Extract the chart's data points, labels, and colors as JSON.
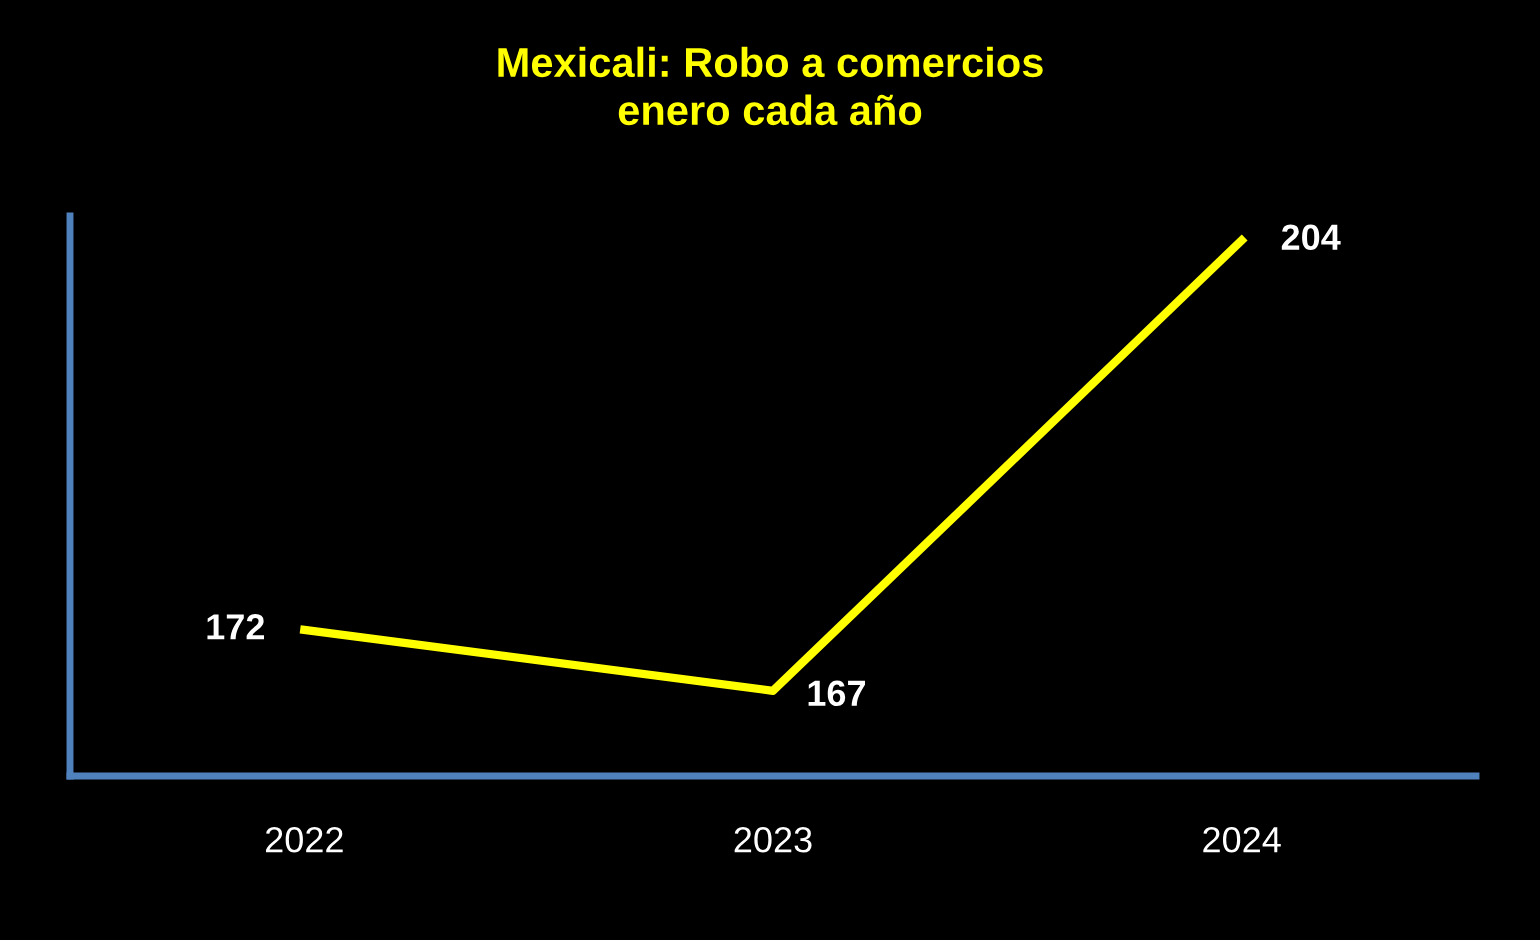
{
  "chart_data": {
    "type": "line",
    "title": "Mexicali: Robo a comercios\nenero cada año",
    "categories": [
      "2022",
      "2023",
      "2024"
    ],
    "series": [
      {
        "color": "#ffff00",
        "values": [
          172,
          167,
          204
        ]
      }
    ],
    "ylim": [
      160,
      206
    ],
    "tick_labels": "x",
    "data_labels": true,
    "grid": false,
    "legend": false,
    "marker": "none"
  }
}
